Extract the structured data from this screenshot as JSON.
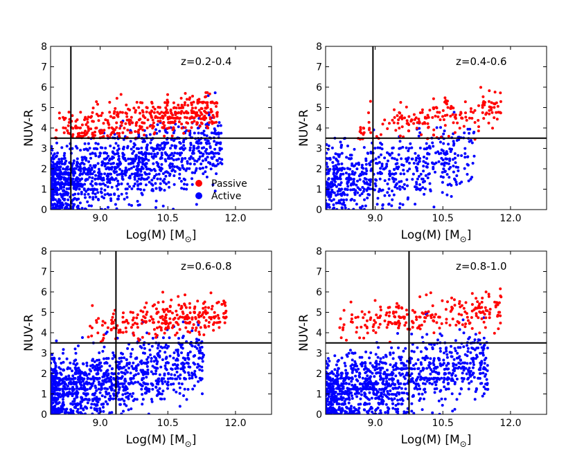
{
  "chart_data": [
    {
      "type": "scatter",
      "title": "z=0.2-0.4",
      "xlabel": "Log(M) [M",
      "xlabel_sub": "⊙",
      "xlabel_close": "]",
      "ylabel": "NUV-R",
      "xlim": [
        7.9,
        12.8
      ],
      "ylim": [
        0,
        8
      ],
      "xticks": [
        "9.0",
        "10.5",
        "12.0"
      ],
      "yticks": [
        "0",
        "1",
        "2",
        "3",
        "4",
        "5",
        "6",
        "7",
        "8"
      ],
      "mass_cut": 8.35,
      "color_cut": 3.5,
      "legend": [
        {
          "name": "Passive",
          "color": "#ff0000"
        },
        {
          "name": "Active",
          "color": "#0000ff"
        }
      ],
      "series": [
        {
          "name": "Passive",
          "color": "#ff0000",
          "n": 420,
          "xmin": 8.0,
          "xmax": 11.6,
          "ymin": 3.5,
          "ymax": 6.4,
          "seed": 11,
          "slope": 0.55,
          "yc": 3.9
        },
        {
          "name": "Active",
          "color": "#0000ff",
          "n": 1300,
          "xmin": 7.9,
          "xmax": 11.7,
          "ymin": 0.0,
          "ymax": 6.4,
          "seed": 17,
          "slope": 0.9,
          "yc": 1.2
        }
      ]
    },
    {
      "type": "scatter",
      "title": "z=0.4-0.6",
      "xlabel": "Log(M) [M",
      "xlabel_sub": "⊙",
      "xlabel_close": "]",
      "ylabel": "NUV-R",
      "xlim": [
        7.9,
        12.8
      ],
      "ylim": [
        0,
        8
      ],
      "xticks": [
        "9.0",
        "10.5",
        "12.0"
      ],
      "yticks": [
        "0",
        "1",
        "2",
        "3",
        "4",
        "5",
        "6",
        "7",
        "8"
      ],
      "mass_cut": 8.95,
      "color_cut": 3.5,
      "legend": [],
      "series": [
        {
          "name": "Passive",
          "color": "#ff0000",
          "n": 190,
          "xmin": 8.6,
          "xmax": 11.8,
          "ymin": 3.4,
          "ymax": 6.2,
          "seed": 23,
          "slope": 0.55,
          "yc": 4.0
        },
        {
          "name": "Active",
          "color": "#0000ff",
          "n": 650,
          "xmin": 7.9,
          "xmax": 11.2,
          "ymin": 0.0,
          "ymax": 5.5,
          "seed": 29,
          "slope": 0.9,
          "yc": 1.2
        }
      ]
    },
    {
      "type": "scatter",
      "title": "z=0.6-0.8",
      "xlabel": "Log(M) [M",
      "xlabel_sub": "⊙",
      "xlabel_close": "]",
      "ylabel": "NUV-R",
      "xlim": [
        7.9,
        12.8
      ],
      "ylim": [
        0,
        8
      ],
      "xticks": [
        "9.0",
        "10.5",
        "12.0"
      ],
      "yticks": [
        "0",
        "1",
        "2",
        "3",
        "4",
        "5",
        "6",
        "7",
        "8"
      ],
      "mass_cut": 9.35,
      "color_cut": 3.5,
      "legend": [],
      "series": [
        {
          "name": "Passive",
          "color": "#ff0000",
          "n": 260,
          "xmin": 8.7,
          "xmax": 11.8,
          "ymin": 3.5,
          "ymax": 6.4,
          "seed": 31,
          "slope": 0.5,
          "yc": 4.2
        },
        {
          "name": "Active",
          "color": "#0000ff",
          "n": 1100,
          "xmin": 7.9,
          "xmax": 11.3,
          "ymin": 0.0,
          "ymax": 6.1,
          "seed": 37,
          "slope": 0.9,
          "yc": 1.0
        }
      ]
    },
    {
      "type": "scatter",
      "title": "z=0.8-1.0",
      "xlabel": "Log(M) [M",
      "xlabel_sub": "⊙",
      "xlabel_close": "]",
      "ylabel": "NUV-R",
      "xlim": [
        7.9,
        12.8
      ],
      "ylim": [
        0,
        8
      ],
      "xticks": [
        "9.0",
        "10.5",
        "12.0"
      ],
      "yticks": [
        "0",
        "1",
        "2",
        "3",
        "4",
        "5",
        "6",
        "7",
        "8"
      ],
      "mass_cut": 9.75,
      "color_cut": 3.5,
      "legend": [],
      "series": [
        {
          "name": "Passive",
          "color": "#ff0000",
          "n": 230,
          "xmin": 8.2,
          "xmax": 11.8,
          "ymin": 3.5,
          "ymax": 6.3,
          "seed": 41,
          "slope": 0.4,
          "yc": 4.4
        },
        {
          "name": "Active",
          "color": "#0000ff",
          "n": 1150,
          "xmin": 7.9,
          "xmax": 11.5,
          "ymin": 0.0,
          "ymax": 6.3,
          "seed": 43,
          "slope": 0.85,
          "yc": 0.9
        }
      ]
    }
  ]
}
